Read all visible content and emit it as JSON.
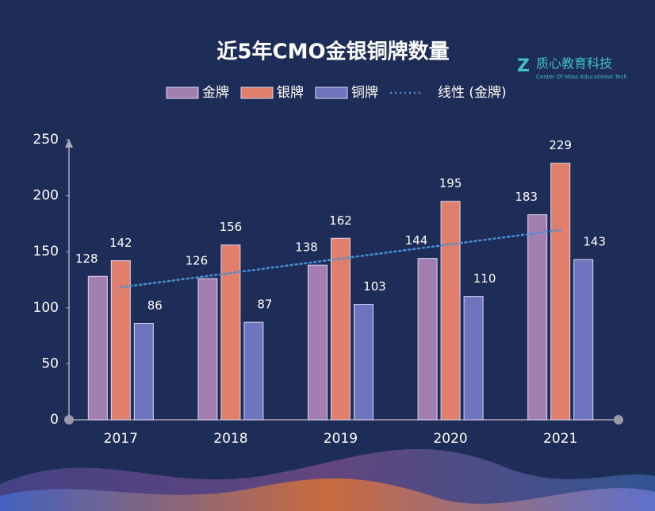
{
  "chart_data": {
    "type": "bar",
    "title": "近5年CMO金银铜牌数量",
    "logo": {
      "name": "质心教育科技",
      "tagline": "Center Of Mass Educational Tech"
    },
    "categories": [
      "2017",
      "2018",
      "2019",
      "2020",
      "2021"
    ],
    "series": [
      {
        "name": "金牌",
        "color": "#a27fb0",
        "values": [
          128,
          126,
          138,
          144,
          183
        ]
      },
      {
        "name": "银牌",
        "color": "#e07f6b",
        "values": [
          142,
          156,
          162,
          195,
          229
        ]
      },
      {
        "name": "铜牌",
        "color": "#6f74bf",
        "values": [
          86,
          87,
          103,
          110,
          143
        ]
      }
    ],
    "trendline": {
      "name": "线性 (金牌)",
      "series": 0,
      "color": "#4a8fd6"
    },
    "ylim": [
      0,
      250
    ],
    "yticks": [
      0,
      50,
      100,
      150,
      200,
      250
    ]
  }
}
